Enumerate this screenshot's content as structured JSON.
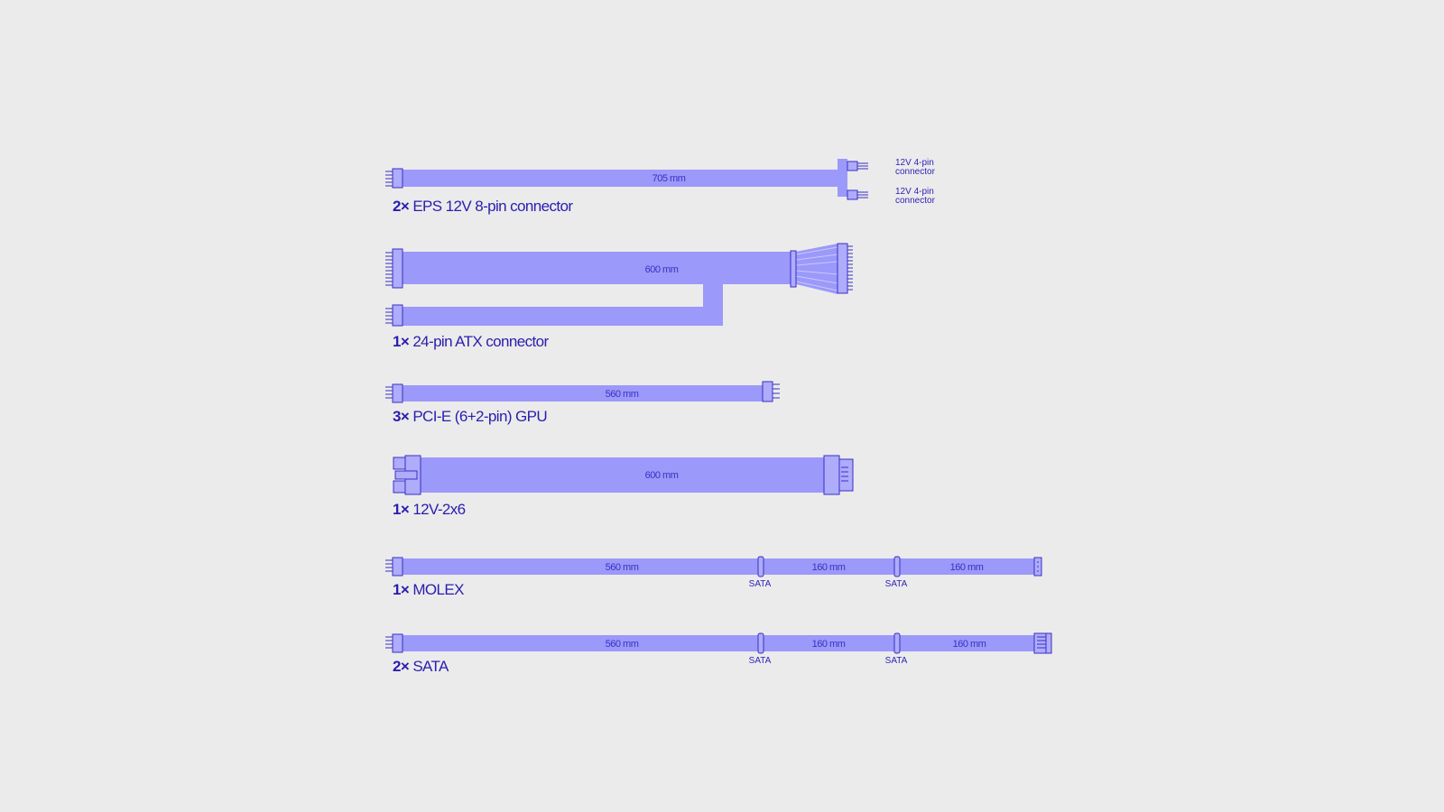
{
  "colors": {
    "background": "#ebebeb",
    "cable": "#9b99f9",
    "ink": "#2a1db0"
  },
  "cables": [
    {
      "qty": "2×",
      "name": "EPS 12V 8-pin connector",
      "lengths": [
        "705 mm"
      ],
      "branch_labels": [
        [
          "12V 4-pin",
          "connector"
        ],
        [
          "12V 4-pin",
          "connector"
        ]
      ]
    },
    {
      "qty": "1×",
      "name": "24-pin ATX connector",
      "lengths": [
        "600 mm"
      ]
    },
    {
      "qty": "3×",
      "name": "PCI-E (6+2-pin) GPU",
      "lengths": [
        "560 mm"
      ]
    },
    {
      "qty": "1×",
      "name": "12V-2x6",
      "lengths": [
        "600 mm"
      ]
    },
    {
      "qty": "1×",
      "name": "MOLEX",
      "lengths": [
        "560 mm",
        "160 mm",
        "160 mm"
      ],
      "taps": [
        "SATA",
        "SATA"
      ]
    },
    {
      "qty": "2×",
      "name": "SATA",
      "lengths": [
        "560 mm",
        "160 mm",
        "160 mm"
      ],
      "taps": [
        "SATA",
        "SATA"
      ]
    }
  ]
}
